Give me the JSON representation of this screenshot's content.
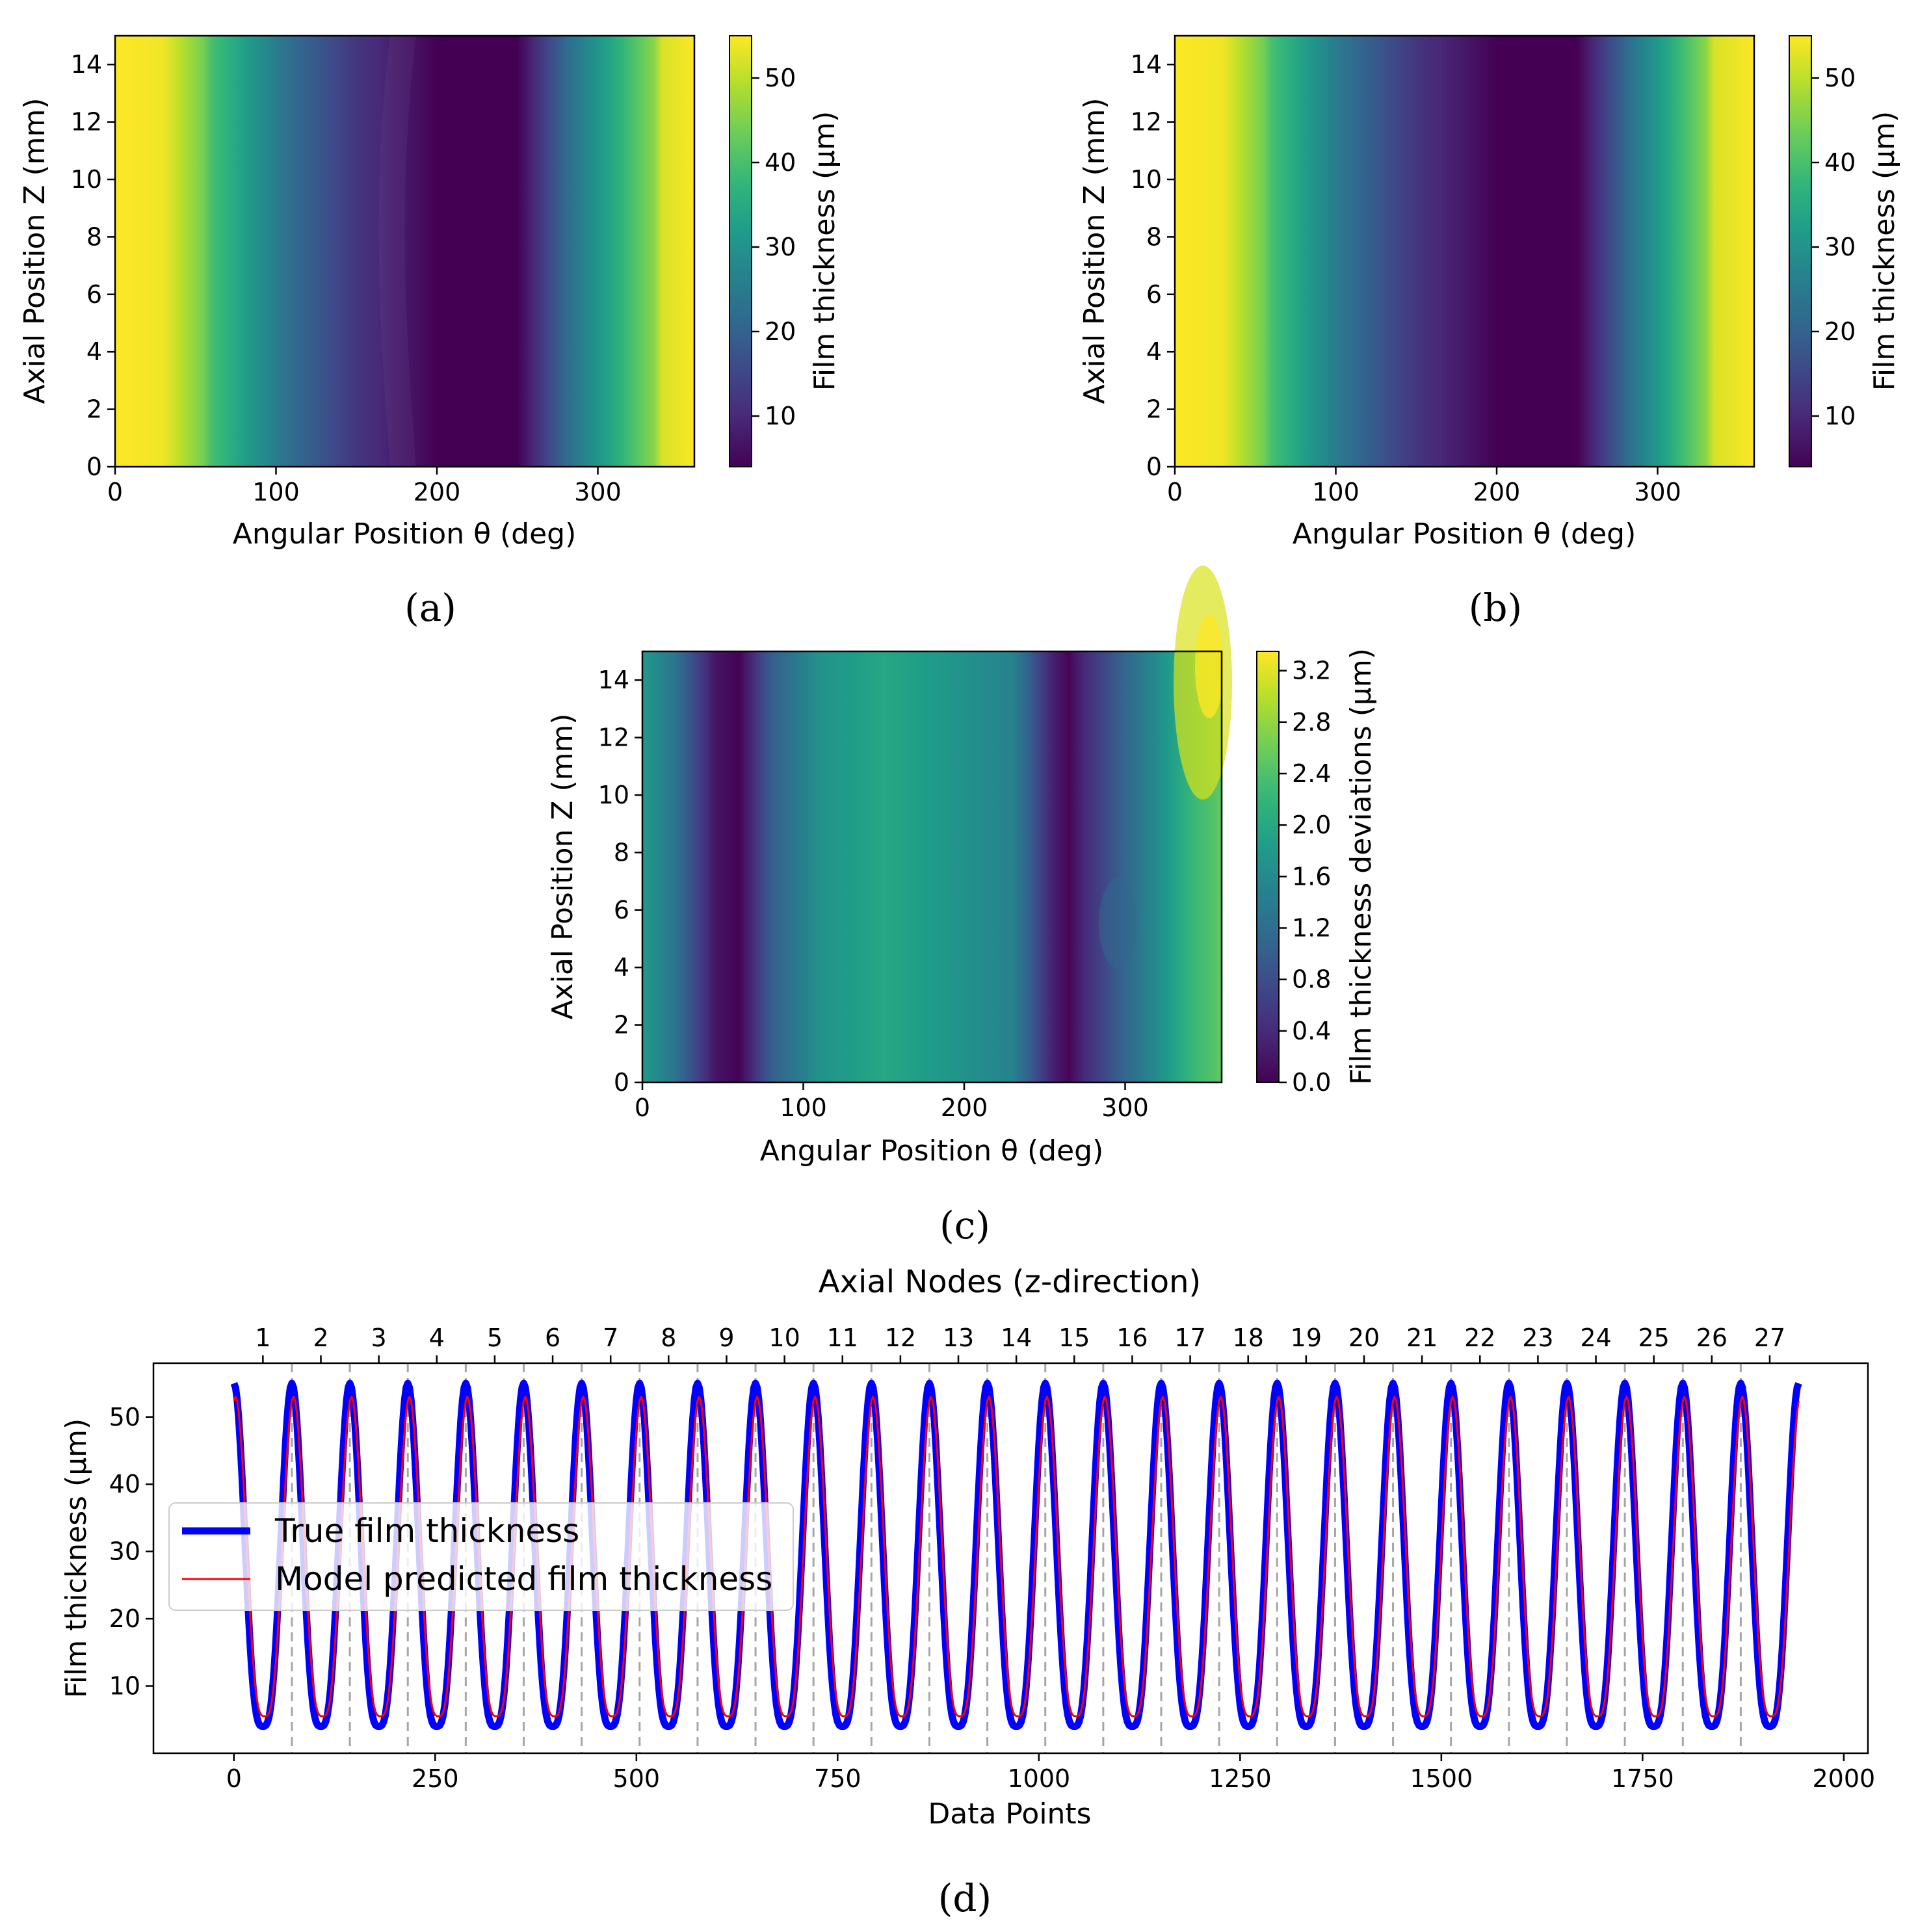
{
  "colors": {
    "true_line": "#0000ff",
    "model_line": "#ff0000",
    "vline": "#a6a6a6",
    "viridis": [
      "#440154",
      "#482878",
      "#3e4989",
      "#31688e",
      "#26828e",
      "#1f9e89",
      "#35b779",
      "#6ece58",
      "#b5de2b",
      "#fde725"
    ]
  },
  "panels": [
    "(a)",
    "(b)",
    "(c)",
    "(d)"
  ],
  "chart_data": [
    {
      "id": "a",
      "type": "heatmap",
      "xlabel": "Angular Position θ (deg)",
      "ylabel": "Axial Position Z (mm)",
      "xlim": [
        0,
        360
      ],
      "ylim": [
        0,
        15
      ],
      "xticks": [
        0,
        100,
        200,
        300
      ],
      "yticks": [
        0,
        2,
        4,
        6,
        8,
        10,
        12,
        14
      ],
      "colorbar": {
        "label": "Film thickness (μm)",
        "range": [
          4,
          55
        ],
        "ticks": [
          10,
          20,
          30,
          40,
          50
        ]
      },
      "profile": {
        "theta": [
          0,
          30,
          55,
          60,
          110,
          150,
          200,
          250,
          285,
          335,
          340,
          360
        ],
        "value": [
          55,
          54,
          44,
          40,
          22,
          12,
          4,
          4,
          24,
          46,
          52,
          55
        ]
      }
    },
    {
      "id": "b",
      "type": "heatmap",
      "xlabel": "Angular Position θ (deg)",
      "ylabel": "Axial Position Z (mm)",
      "xlim": [
        0,
        360
      ],
      "ylim": [
        0,
        15
      ],
      "xticks": [
        0,
        100,
        200,
        300
      ],
      "yticks": [
        0,
        2,
        4,
        6,
        8,
        10,
        12,
        14
      ],
      "colorbar": {
        "label": "Film thickness (μm)",
        "range": [
          4,
          55
        ],
        "ticks": [
          10,
          20,
          30,
          40,
          50
        ]
      },
      "profile": {
        "theta": [
          0,
          30,
          55,
          60,
          110,
          150,
          200,
          250,
          285,
          330,
          335,
          360
        ],
        "value": [
          55,
          54,
          44,
          40,
          22,
          12,
          4,
          4,
          24,
          46,
          52,
          55
        ]
      }
    },
    {
      "id": "c",
      "type": "heatmap",
      "xlabel": "Angular Position θ (deg)",
      "ylabel": "Axial Position Z (mm)",
      "xlim": [
        0,
        360
      ],
      "ylim": [
        0,
        15
      ],
      "xticks": [
        0,
        100,
        200,
        300
      ],
      "yticks": [
        0,
        2,
        4,
        6,
        8,
        10,
        12,
        14
      ],
      "colorbar": {
        "label": "Film thickness deviations (μm)",
        "range": [
          0,
          3.35
        ],
        "ticks": [
          "0.0",
          "0.4",
          "0.8",
          "1.2",
          "1.6",
          "2.0",
          "2.4",
          "2.8",
          "3.2"
        ]
      },
      "profile": {
        "theta": [
          0,
          20,
          45,
          60,
          80,
          110,
          150,
          200,
          230,
          255,
          265,
          275,
          300,
          330,
          345,
          360
        ],
        "value": [
          1.8,
          1.3,
          0.2,
          0.0,
          1.0,
          1.7,
          2.0,
          1.7,
          1.5,
          0.3,
          0.05,
          0.4,
          1.1,
          1.9,
          2.3,
          2.5
        ]
      }
    },
    {
      "id": "d",
      "type": "line",
      "title": "Axial Nodes (z-direction)",
      "xlabel": "Data Points",
      "ylabel": "Film thickness (μm)",
      "xlim": [
        -100,
        2030
      ],
      "ylim": [
        0,
        58
      ],
      "xticks": [
        0,
        250,
        500,
        750,
        1000,
        1250,
        1500,
        1750,
        2000
      ],
      "yticks": [
        10,
        20,
        30,
        40,
        50
      ],
      "points_per_node": 72,
      "total_points": 1944,
      "node_labels": [
        "1",
        "2",
        "3",
        "4",
        "5",
        "6",
        "7",
        "8",
        "9",
        "10",
        "11",
        "12",
        "13",
        "14",
        "15",
        "16",
        "17",
        "18",
        "19",
        "20",
        "21",
        "22",
        "23",
        "24",
        "25",
        "26",
        "27"
      ],
      "legend": {
        "position": "center-left",
        "entries": [
          "True film thickness",
          "Model predicted film thickness"
        ]
      },
      "series": [
        {
          "name": "True film thickness",
          "peak": 55,
          "trough": 4
        },
        {
          "name": "Model predicted film thickness",
          "peak": 53,
          "trough": 5.5
        }
      ]
    }
  ]
}
